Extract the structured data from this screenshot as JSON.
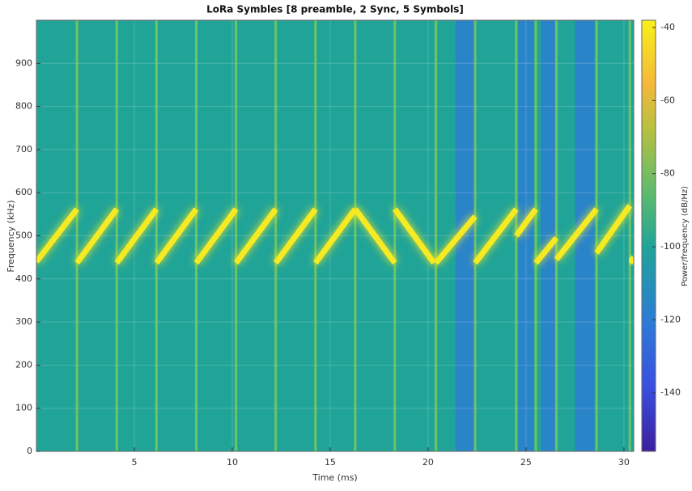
{
  "chart_data": {
    "type": "spectrogram",
    "title": "LoRa Symbles [8 preamble, 2 Sync, 5 Symbols]",
    "xlabel": "Time (ms)",
    "ylabel": "Frequency (kHz)",
    "colorbar_label": "Power/frequency (dB/Hz)",
    "xlim": [
      0,
      30.5
    ],
    "ylim": [
      0,
      1000
    ],
    "xticks": [
      5,
      10,
      15,
      20,
      25,
      30
    ],
    "yticks": [
      0,
      100,
      200,
      300,
      400,
      500,
      600,
      700,
      800,
      900
    ],
    "clim": [
      -156,
      -38
    ],
    "cticks": [
      -40,
      -60,
      -80,
      -100,
      -120,
      -140
    ],
    "grid": true,
    "background_power": -100,
    "chirp_color": "#f6ea24",
    "blocks": [
      {
        "t0": 21.4,
        "t1": 22.4,
        "power": -116
      },
      {
        "t0": 24.6,
        "t1": 25.4,
        "power": -116
      },
      {
        "t0": 25.75,
        "t1": 26.5,
        "power": -116
      },
      {
        "t0": 27.5,
        "t1": 28.5,
        "power": -116
      }
    ],
    "chirps": [
      {
        "t0": 0,
        "t1": 2.07,
        "f0": 440,
        "f1": 562
      },
      {
        "t0": 2.07,
        "t1": 4.1,
        "f0": 437,
        "f1": 562
      },
      {
        "t0": 4.1,
        "t1": 6.13,
        "f0": 437,
        "f1": 562
      },
      {
        "t0": 6.13,
        "t1": 8.16,
        "f0": 437,
        "f1": 562
      },
      {
        "t0": 8.16,
        "t1": 10.19,
        "f0": 437,
        "f1": 562
      },
      {
        "t0": 10.19,
        "t1": 12.22,
        "f0": 437,
        "f1": 562
      },
      {
        "t0": 12.22,
        "t1": 14.25,
        "f0": 437,
        "f1": 562
      },
      {
        "t0": 14.25,
        "t1": 16.28,
        "f0": 437,
        "f1": 562
      },
      {
        "t0": 16.28,
        "t1": 18.3,
        "f0": 562,
        "f1": 437
      },
      {
        "t0": 18.3,
        "t1": 20.3,
        "f0": 562,
        "f1": 437
      },
      {
        "t0": 20.4,
        "t1": 22.4,
        "f0": 437,
        "f1": 545
      },
      {
        "t0": 22.4,
        "t1": 24.5,
        "f0": 437,
        "f1": 562
      },
      {
        "t0": 24.5,
        "t1": 25.5,
        "f0": 500,
        "f1": 562
      },
      {
        "t0": 25.5,
        "t1": 26.55,
        "f0": 437,
        "f1": 495
      },
      {
        "t0": 26.55,
        "t1": 28.6,
        "f0": 445,
        "f1": 562
      },
      {
        "t0": 28.6,
        "t1": 30.3,
        "f0": 460,
        "f1": 570
      },
      {
        "t0": 30.3,
        "t1": 30.5,
        "f0": 437,
        "f1": 450
      }
    ]
  }
}
